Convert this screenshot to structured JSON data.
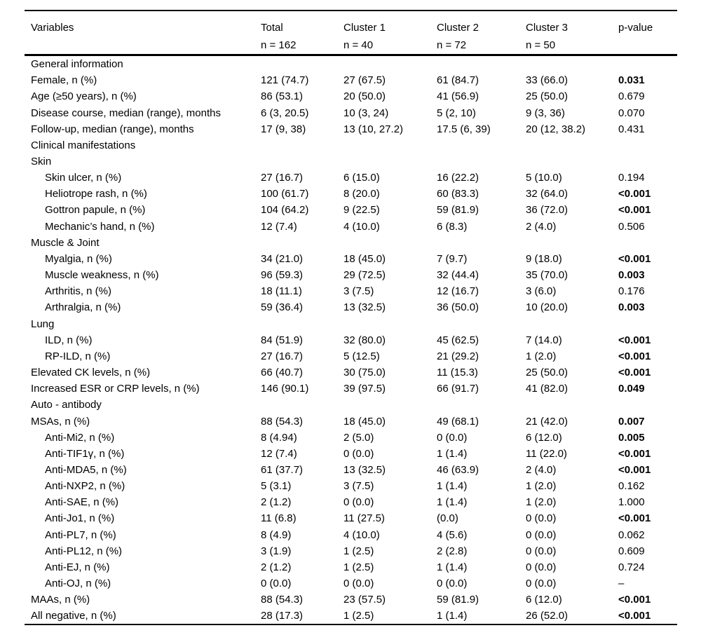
{
  "table": {
    "columns": [
      "Variables",
      "Total",
      "Cluster 1",
      "Cluster 2",
      "Cluster 3",
      "p-value"
    ],
    "subheaders": [
      "",
      "n = 162",
      "n = 40",
      "n = 72",
      "n = 50",
      ""
    ],
    "rows": [
      {
        "label": "General information",
        "indent": 0,
        "section": true,
        "values": [
          "",
          "",
          "",
          ""
        ],
        "p": "",
        "p_bold": false
      },
      {
        "label": "Female, n (%)",
        "indent": 0,
        "section": false,
        "values": [
          "121 (74.7)",
          "27 (67.5)",
          "61 (84.7)",
          "33 (66.0)"
        ],
        "p": "0.031",
        "p_bold": true
      },
      {
        "label": "Age (≥50 years), n (%)",
        "indent": 0,
        "section": false,
        "values": [
          "86 (53.1)",
          "20 (50.0)",
          "41 (56.9)",
          "25 (50.0)"
        ],
        "p": "0.679",
        "p_bold": false
      },
      {
        "label": "Disease course, median (range), months",
        "indent": 0,
        "section": false,
        "values": [
          "6 (3, 20.5)",
          "10 (3, 24)",
          "5 (2, 10)",
          "9 (3, 36)"
        ],
        "p": "0.070",
        "p_bold": false
      },
      {
        "label": "Follow-up, median (range), months",
        "indent": 0,
        "section": false,
        "values": [
          "17 (9, 38)",
          "13 (10, 27.2)",
          "17.5 (6, 39)",
          "20 (12, 38.2)"
        ],
        "p": "0.431",
        "p_bold": false
      },
      {
        "label": "Clinical manifestations",
        "indent": 0,
        "section": true,
        "values": [
          "",
          "",
          "",
          ""
        ],
        "p": "",
        "p_bold": false
      },
      {
        "label": "Skin",
        "indent": 0,
        "section": true,
        "values": [
          "",
          "",
          "",
          ""
        ],
        "p": "",
        "p_bold": false
      },
      {
        "label": "Skin ulcer, n (%)",
        "indent": 1,
        "section": false,
        "values": [
          "27 (16.7)",
          "6 (15.0)",
          "16 (22.2)",
          "5 (10.0)"
        ],
        "p": "0.194",
        "p_bold": false
      },
      {
        "label": "Heliotrope rash, n (%)",
        "indent": 1,
        "section": false,
        "values": [
          "100 (61.7)",
          "8 (20.0)",
          "60 (83.3)",
          "32 (64.0)"
        ],
        "p": "<0.001",
        "p_bold": true
      },
      {
        "label": "Gottron papule, n (%)",
        "indent": 1,
        "section": false,
        "values": [
          "104 (64.2)",
          "9 (22.5)",
          "59 (81.9)",
          "36 (72.0)"
        ],
        "p": "<0.001",
        "p_bold": true
      },
      {
        "label": "Mechanic’s hand, n (%)",
        "indent": 1,
        "section": false,
        "values": [
          "12 (7.4)",
          "4 (10.0)",
          "6 (8.3)",
          "2 (4.0)"
        ],
        "p": "0.506",
        "p_bold": false
      },
      {
        "label": "Muscle & Joint",
        "indent": 0,
        "section": true,
        "values": [
          "",
          "",
          "",
          ""
        ],
        "p": "",
        "p_bold": false
      },
      {
        "label": "Myalgia, n (%)",
        "indent": 1,
        "section": false,
        "values": [
          "34 (21.0)",
          "18 (45.0)",
          "7 (9.7)",
          "9 (18.0)"
        ],
        "p": "<0.001",
        "p_bold": true
      },
      {
        "label": "Muscle weakness, n (%)",
        "indent": 1,
        "section": false,
        "values": [
          "96 (59.3)",
          "29 (72.5)",
          "32 (44.4)",
          "35 (70.0)"
        ],
        "p": "0.003",
        "p_bold": true
      },
      {
        "label": "Arthritis, n (%)",
        "indent": 1,
        "section": false,
        "values": [
          "18 (11.1)",
          "3 (7.5)",
          "12 (16.7)",
          "3 (6.0)"
        ],
        "p": "0.176",
        "p_bold": false
      },
      {
        "label": "Arthralgia, n (%)",
        "indent": 1,
        "section": false,
        "values": [
          "59 (36.4)",
          "13 (32.5)",
          "36 (50.0)",
          "10 (20.0)"
        ],
        "p": "0.003",
        "p_bold": true
      },
      {
        "label": "Lung",
        "indent": 0,
        "section": true,
        "values": [
          "",
          "",
          "",
          ""
        ],
        "p": "",
        "p_bold": false
      },
      {
        "label": "ILD, n (%)",
        "indent": 1,
        "section": false,
        "values": [
          "84 (51.9)",
          "32 (80.0)",
          "45 (62.5)",
          "7 (14.0)"
        ],
        "p": "<0.001",
        "p_bold": true
      },
      {
        "label": "RP-ILD, n (%)",
        "indent": 1,
        "section": false,
        "values": [
          "27 (16.7)",
          "5 (12.5)",
          "21 (29.2)",
          "1 (2.0)"
        ],
        "p": "<0.001",
        "p_bold": true
      },
      {
        "label": "Elevated CK levels, n (%)",
        "indent": 0,
        "section": false,
        "values": [
          "66 (40.7)",
          "30 (75.0)",
          "11 (15.3)",
          "25 (50.0)"
        ],
        "p": "<0.001",
        "p_bold": true
      },
      {
        "label": "Increased ESR or CRP levels, n (%)",
        "indent": 0,
        "section": false,
        "values": [
          "146 (90.1)",
          "39 (97.5)",
          "66 (91.7)",
          "41 (82.0)"
        ],
        "p": "0.049",
        "p_bold": true
      },
      {
        "label": "Auto - antibody",
        "indent": 0,
        "section": true,
        "values": [
          "",
          "",
          "",
          ""
        ],
        "p": "",
        "p_bold": false
      },
      {
        "label": "MSAs, n (%)",
        "indent": 0,
        "section": false,
        "values": [
          "88 (54.3)",
          "18 (45.0)",
          "49 (68.1)",
          "21 (42.0)"
        ],
        "p": "0.007",
        "p_bold": true
      },
      {
        "label": "Anti-Mi2, n (%)",
        "indent": 1,
        "section": false,
        "values": [
          "8 (4.94)",
          "2 (5.0)",
          "0 (0.0)",
          "6 (12.0)"
        ],
        "p": "0.005",
        "p_bold": true
      },
      {
        "label": "Anti-TIF1γ, n (%)",
        "indent": 1,
        "section": false,
        "values": [
          "12 (7.4)",
          "0 (0.0)",
          "1 (1.4)",
          "11 (22.0)"
        ],
        "p": "<0.001",
        "p_bold": true
      },
      {
        "label": "Anti-MDA5, n (%)",
        "indent": 1,
        "section": false,
        "values": [
          "61 (37.7)",
          "13 (32.5)",
          "46 (63.9)",
          "2 (4.0)"
        ],
        "p": "<0.001",
        "p_bold": true
      },
      {
        "label": "Anti-NXP2, n (%)",
        "indent": 1,
        "section": false,
        "values": [
          "5 (3.1)",
          "3 (7.5)",
          "1 (1.4)",
          "1 (2.0)"
        ],
        "p": "0.162",
        "p_bold": false
      },
      {
        "label": "Anti-SAE, n (%)",
        "indent": 1,
        "section": false,
        "values": [
          "2 (1.2)",
          "0 (0.0)",
          "1 (1.4)",
          "1 (2.0)"
        ],
        "p": "1.000",
        "p_bold": false
      },
      {
        "label": "Anti-Jo1, n (%)",
        "indent": 1,
        "section": false,
        "values": [
          "11 (6.8)",
          "11 (27.5)",
          "(0.0)",
          "0 (0.0)"
        ],
        "p": "<0.001",
        "p_bold": true
      },
      {
        "label": "Anti-PL7, n (%)",
        "indent": 1,
        "section": false,
        "values": [
          "8 (4.9)",
          "4 (10.0)",
          "4 (5.6)",
          "0 (0.0)"
        ],
        "p": "0.062",
        "p_bold": false
      },
      {
        "label": "Anti-PL12, n (%)",
        "indent": 1,
        "section": false,
        "values": [
          "3 (1.9)",
          "1 (2.5)",
          "2 (2.8)",
          "0 (0.0)"
        ],
        "p": "0.609",
        "p_bold": false
      },
      {
        "label": "Anti-EJ, n (%)",
        "indent": 1,
        "section": false,
        "values": [
          "2 (1.2)",
          "1 (2.5)",
          "1 (1.4)",
          "0 (0.0)"
        ],
        "p": "0.724",
        "p_bold": false
      },
      {
        "label": "Anti-OJ, n (%)",
        "indent": 1,
        "section": false,
        "values": [
          "0 (0.0)",
          "0 (0.0)",
          "0 (0.0)",
          "0 (0.0)"
        ],
        "p": "–",
        "p_bold": false
      },
      {
        "label": "MAAs, n (%)",
        "indent": 0,
        "section": false,
        "values": [
          "88 (54.3)",
          "23 (57.5)",
          "59 (81.9)",
          "6 (12.0)"
        ],
        "p": "<0.001",
        "p_bold": true
      },
      {
        "label": "All negative, n (%)",
        "indent": 0,
        "section": false,
        "values": [
          "28 (17.3)",
          "1 (2.5)",
          "1 (1.4)",
          "26 (52.0)"
        ],
        "p": "<0.001",
        "p_bold": true
      }
    ]
  }
}
